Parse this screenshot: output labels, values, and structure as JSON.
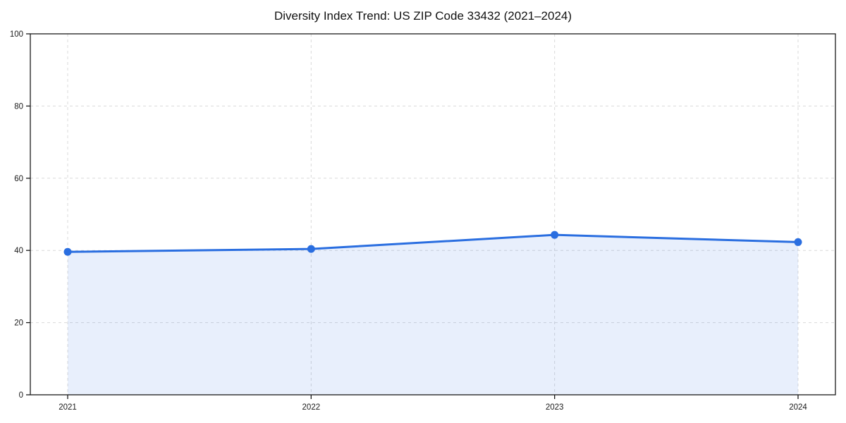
{
  "title": "Diversity Index Trend: US ZIP Code 33432 (2021–2024)",
  "colors": {
    "line": "#2a6ee0",
    "marker": "#2a6ee0",
    "area_fill": "#2a6ee0",
    "area_opacity": 0.11,
    "grid": "#d9d9d9",
    "axis": "#1a1a1a",
    "text": "#1a1a1a",
    "background": "#ffffff"
  },
  "chart_data": {
    "type": "line",
    "title": "Diversity Index Trend: US ZIP Code 33432 (2021–2024)",
    "categories": [
      "2021",
      "2022",
      "2023",
      "2024"
    ],
    "series": [
      {
        "name": "Diversity Index",
        "values": [
          39.6,
          40.4,
          44.3,
          42.3
        ]
      }
    ],
    "xlabel": "",
    "ylabel": "",
    "ylim": [
      0,
      100
    ],
    "yticks": [
      0,
      20,
      40,
      60,
      80,
      100
    ],
    "grid": true,
    "grid_style": "dashed",
    "legend": "none",
    "area_fill": true,
    "markers": true,
    "frame": "full-box"
  }
}
